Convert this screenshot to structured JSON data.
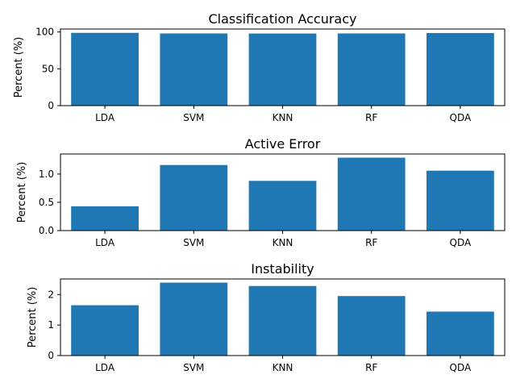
{
  "colors": {
    "bar": "#1f77b4",
    "axis": "#000000",
    "background": "#ffffff"
  },
  "chart_data": [
    {
      "type": "bar",
      "title": "Classification Accuracy",
      "xlabel": "",
      "ylabel": "Percent (%)",
      "categories": [
        "LDA",
        "SVM",
        "KNN",
        "RF",
        "QDA"
      ],
      "values": [
        98.8,
        98.0,
        97.9,
        98.0,
        98.6
      ],
      "ylim": [
        0,
        104
      ],
      "yticks": [
        0,
        50,
        100
      ],
      "grid": false
    },
    {
      "type": "bar",
      "title": "Active Error",
      "xlabel": "",
      "ylabel": "Percent (%)",
      "categories": [
        "LDA",
        "SVM",
        "KNN",
        "RF",
        "QDA"
      ],
      "values": [
        0.43,
        1.16,
        0.88,
        1.29,
        1.06
      ],
      "ylim": [
        0,
        1.355
      ],
      "yticks": [
        0.0,
        0.5,
        1.0
      ],
      "grid": false
    },
    {
      "type": "bar",
      "title": "Instability",
      "xlabel": "",
      "ylabel": "Percent (%)",
      "categories": [
        "LDA",
        "SVM",
        "KNN",
        "RF",
        "QDA"
      ],
      "values": [
        1.65,
        2.39,
        2.28,
        1.95,
        1.44
      ],
      "ylim": [
        0,
        2.51
      ],
      "yticks": [
        0,
        1,
        2
      ],
      "grid": false
    }
  ]
}
